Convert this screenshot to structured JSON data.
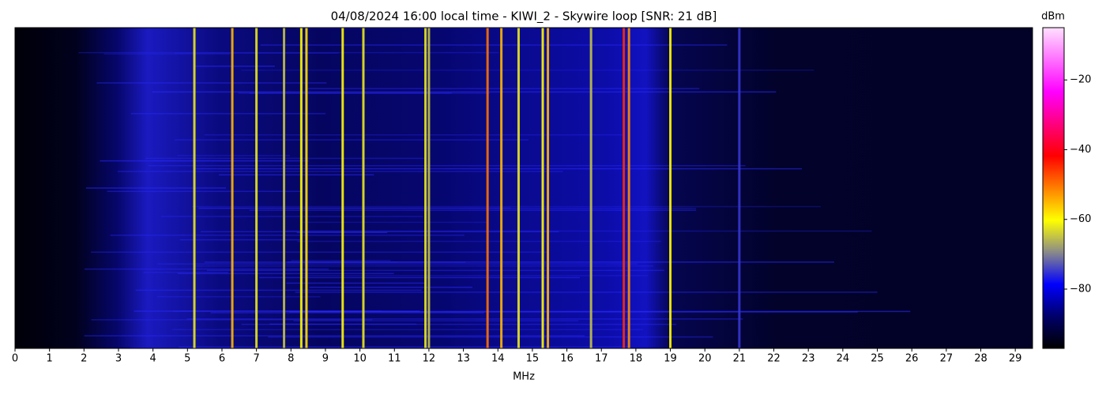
{
  "chart_data": {
    "type": "spectrogram",
    "title": "04/08/2024 16:00 local time - KIWI_2 - Skywire loop [SNR: 21 dB]",
    "x_label": "MHz",
    "xlim": [
      0,
      29.5
    ],
    "xticks": [
      0,
      1,
      2,
      3,
      4,
      5,
      6,
      7,
      8,
      9,
      10,
      11,
      12,
      13,
      14,
      15,
      16,
      17,
      18,
      19,
      20,
      21,
      22,
      23,
      24,
      25,
      26,
      27,
      28,
      29
    ],
    "colorbar_label": "dBm",
    "clim": [
      -97,
      -5
    ],
    "cticks": [
      {
        "value": -20,
        "label": "−20"
      },
      {
        "value": -40,
        "label": "−40"
      },
      {
        "value": -60,
        "label": "−60"
      },
      {
        "value": -80,
        "label": "−80"
      }
    ],
    "signals": [
      {
        "freq": 5.2,
        "level": -62
      },
      {
        "freq": 6.3,
        "level": -55
      },
      {
        "freq": 7.0,
        "level": -62
      },
      {
        "freq": 7.8,
        "level": -65
      },
      {
        "freq": 8.3,
        "level": -60
      },
      {
        "freq": 8.45,
        "level": -58
      },
      {
        "freq": 9.5,
        "level": -60
      },
      {
        "freq": 10.1,
        "level": -62
      },
      {
        "freq": 11.9,
        "level": -62
      },
      {
        "freq": 12.0,
        "level": -65
      },
      {
        "freq": 13.7,
        "level": -50
      },
      {
        "freq": 14.1,
        "level": -55
      },
      {
        "freq": 14.6,
        "level": -62
      },
      {
        "freq": 15.3,
        "level": -60
      },
      {
        "freq": 15.45,
        "level": -55
      },
      {
        "freq": 16.7,
        "level": -65
      },
      {
        "freq": 17.65,
        "level": -45
      },
      {
        "freq": 17.8,
        "level": -52
      },
      {
        "freq": 19.0,
        "level": -60
      },
      {
        "freq": 21.0,
        "level": -75
      }
    ]
  }
}
